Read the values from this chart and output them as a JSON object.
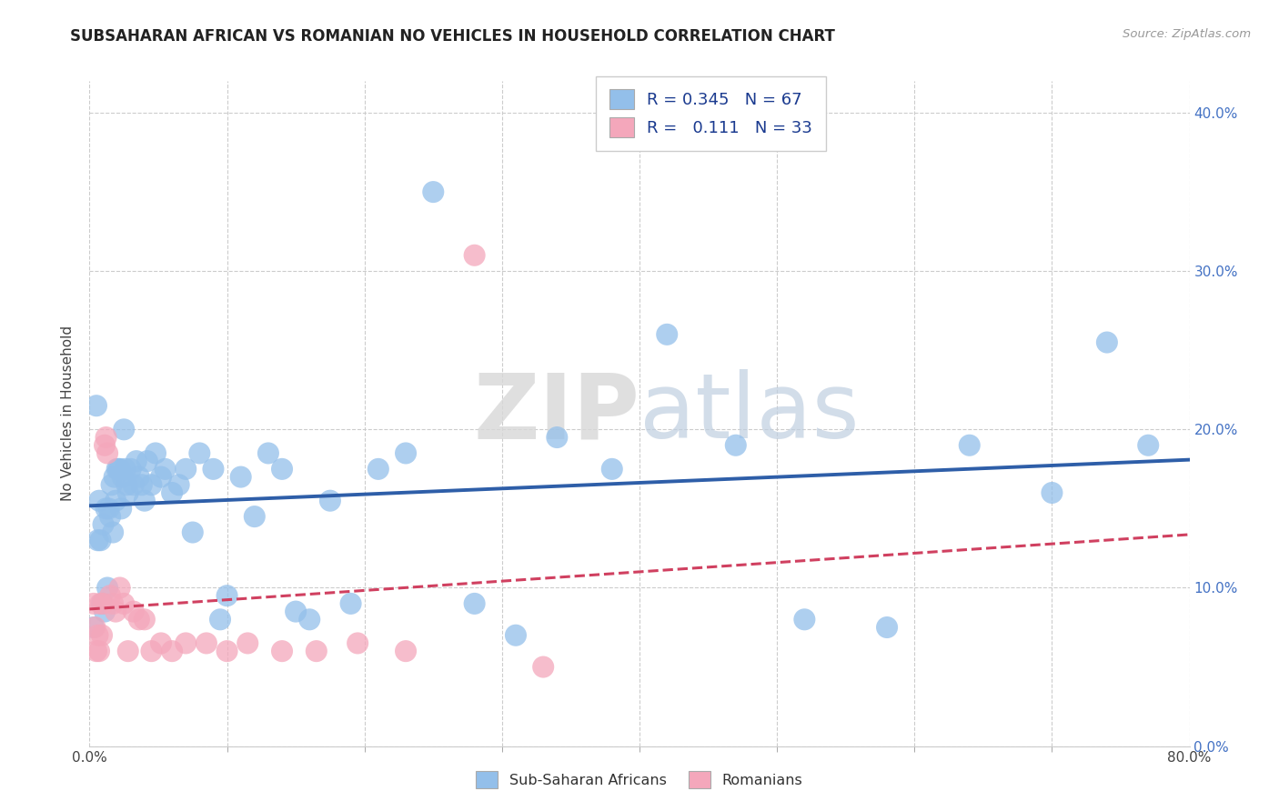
{
  "title": "SUBSAHARAN AFRICAN VS ROMANIAN NO VEHICLES IN HOUSEHOLD CORRELATION CHART",
  "source": "Source: ZipAtlas.com",
  "ylabel": "No Vehicles in Household",
  "xlim": [
    0.0,
    0.8
  ],
  "ylim": [
    0.0,
    0.42
  ],
  "xticks_major": [
    0.0,
    0.8
  ],
  "xticks_minor": [
    0.1,
    0.2,
    0.3,
    0.4,
    0.5,
    0.6,
    0.7
  ],
  "xticklabels_major": [
    "0.0%",
    "80.0%"
  ],
  "yticks": [
    0.0,
    0.1,
    0.2,
    0.3,
    0.4
  ],
  "yticklabels_right": [
    "0.0%",
    "10.0%",
    "20.0%",
    "30.0%",
    "40.0%"
  ],
  "legend_label1": "Sub-Saharan Africans",
  "legend_label2": "Romanians",
  "r_blue": 0.345,
  "n_blue": 67,
  "r_pink": 0.111,
  "n_pink": 33,
  "blue_color": "#93BFEA",
  "pink_color": "#F4A7BB",
  "blue_line_color": "#2E5EA8",
  "pink_line_color": "#D04060",
  "watermark_zip": "ZIP",
  "watermark_atlas": "atlas",
  "blue_x": [
    0.003,
    0.005,
    0.006,
    0.007,
    0.008,
    0.009,
    0.01,
    0.011,
    0.012,
    0.013,
    0.014,
    0.015,
    0.016,
    0.017,
    0.018,
    0.019,
    0.02,
    0.021,
    0.022,
    0.023,
    0.024,
    0.025,
    0.026,
    0.027,
    0.028,
    0.03,
    0.032,
    0.034,
    0.036,
    0.038,
    0.04,
    0.042,
    0.045,
    0.048,
    0.052,
    0.055,
    0.06,
    0.065,
    0.07,
    0.075,
    0.08,
    0.09,
    0.095,
    0.1,
    0.11,
    0.12,
    0.13,
    0.14,
    0.15,
    0.16,
    0.175,
    0.19,
    0.21,
    0.23,
    0.25,
    0.28,
    0.31,
    0.34,
    0.38,
    0.42,
    0.47,
    0.52,
    0.58,
    0.64,
    0.7,
    0.74,
    0.77
  ],
  "blue_y": [
    0.075,
    0.215,
    0.13,
    0.155,
    0.13,
    0.09,
    0.14,
    0.085,
    0.15,
    0.1,
    0.15,
    0.145,
    0.165,
    0.135,
    0.17,
    0.155,
    0.175,
    0.175,
    0.175,
    0.15,
    0.17,
    0.2,
    0.175,
    0.165,
    0.16,
    0.175,
    0.165,
    0.18,
    0.17,
    0.165,
    0.155,
    0.18,
    0.165,
    0.185,
    0.17,
    0.175,
    0.16,
    0.165,
    0.175,
    0.135,
    0.185,
    0.175,
    0.08,
    0.095,
    0.17,
    0.145,
    0.185,
    0.175,
    0.085,
    0.08,
    0.155,
    0.09,
    0.175,
    0.185,
    0.35,
    0.09,
    0.07,
    0.195,
    0.175,
    0.26,
    0.19,
    0.08,
    0.075,
    0.19,
    0.16,
    0.255,
    0.19
  ],
  "pink_x": [
    0.003,
    0.004,
    0.005,
    0.006,
    0.007,
    0.008,
    0.009,
    0.01,
    0.011,
    0.012,
    0.013,
    0.015,
    0.017,
    0.019,
    0.022,
    0.025,
    0.028,
    0.032,
    0.036,
    0.04,
    0.045,
    0.052,
    0.06,
    0.07,
    0.085,
    0.1,
    0.115,
    0.14,
    0.165,
    0.195,
    0.23,
    0.28,
    0.33
  ],
  "pink_y": [
    0.09,
    0.075,
    0.06,
    0.07,
    0.06,
    0.09,
    0.07,
    0.09,
    0.19,
    0.195,
    0.185,
    0.095,
    0.09,
    0.085,
    0.1,
    0.09,
    0.06,
    0.085,
    0.08,
    0.08,
    0.06,
    0.065,
    0.06,
    0.065,
    0.065,
    0.06,
    0.065,
    0.06,
    0.06,
    0.065,
    0.06,
    0.31,
    0.05
  ]
}
